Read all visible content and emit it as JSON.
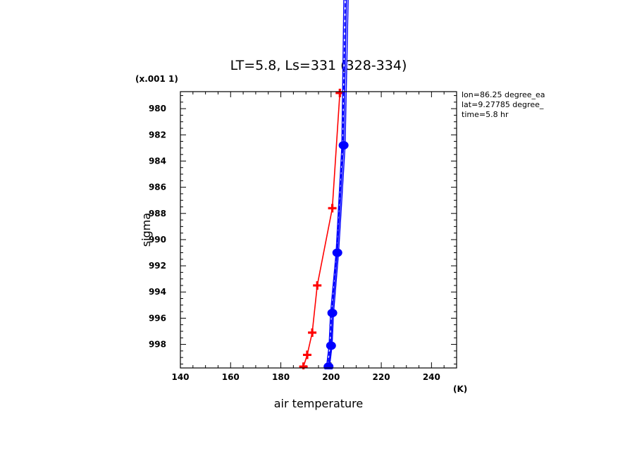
{
  "chart_data": {
    "type": "line",
    "title": "LT=5.8, Ls=331 (328-334)",
    "xlabel": "air temperature",
    "ylabel": "sigma",
    "x_unit": "(K)",
    "y_scale_note": "(x.001 1)",
    "xlim": [
      140,
      250
    ],
    "ylim": [
      999.8,
      978.7
    ],
    "x_ticks": [
      "140",
      "160",
      "180",
      "200",
      "220",
      "240"
    ],
    "y_ticks": [
      "980",
      "982",
      "984",
      "986",
      "988",
      "990",
      "992",
      "994",
      "996",
      "998"
    ],
    "annotations": [
      "lon=86.25 degree_ea",
      "lat=9.27785 degree_",
      "time=5.8 hr"
    ],
    "series": [
      {
        "color": "#ff0000",
        "marker": "plus",
        "points": [
          [
            203.5,
            978.8
          ],
          [
            200.5,
            987.6
          ],
          [
            194.5,
            993.5
          ],
          [
            192.5,
            997.1
          ],
          [
            190.5,
            998.8
          ],
          [
            189.0,
            999.7
          ]
        ]
      },
      {
        "color": "#0000ff",
        "marker": "circle",
        "points": [
          [
            206.3,
            970.0
          ],
          [
            205.0,
            982.8
          ],
          [
            202.5,
            991.0
          ],
          [
            200.5,
            995.6
          ],
          [
            200.0,
            998.1
          ],
          [
            199.0,
            999.7
          ]
        ]
      },
      {
        "color": "#0000ff",
        "marker": "none",
        "points": [
          [
            205.2,
            970.0
          ],
          [
            204.3,
            982.8
          ],
          [
            202.0,
            991.0
          ],
          [
            199.8,
            995.6
          ],
          [
            199.2,
            998.1
          ],
          [
            198.2,
            999.7
          ]
        ]
      },
      {
        "color": "#0000ff",
        "marker": "none",
        "dash": "dashed",
        "points": [
          [
            205.8,
            970.0
          ],
          [
            204.6,
            982.8
          ],
          [
            202.3,
            991.0
          ],
          [
            200.2,
            995.6
          ],
          [
            199.6,
            998.1
          ],
          [
            198.6,
            999.7
          ]
        ]
      },
      {
        "color": "#0000ff",
        "marker": "none",
        "points": [
          [
            207.0,
            970.0
          ],
          [
            205.6,
            982.8
          ],
          [
            203.0,
            991.0
          ],
          [
            201.0,
            995.6
          ],
          [
            200.4,
            998.1
          ],
          [
            199.4,
            999.7
          ]
        ]
      }
    ]
  }
}
